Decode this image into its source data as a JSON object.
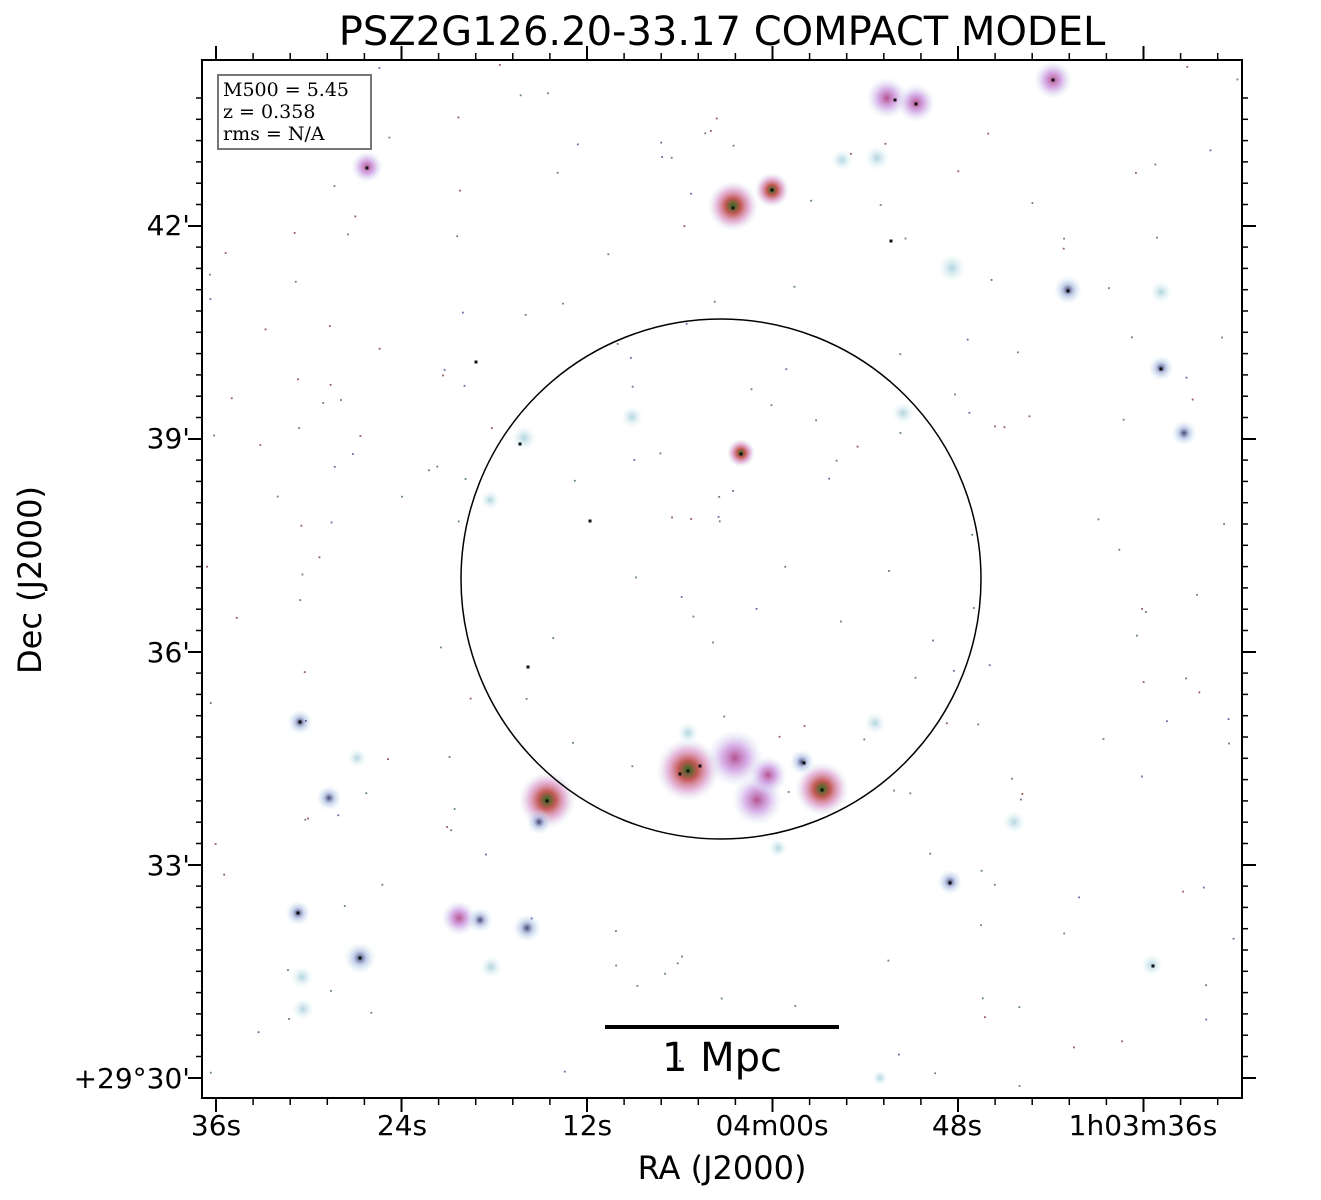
{
  "figure": {
    "title": "PSZ2G126.20-33.17 COMPACT MODEL",
    "xlabel": "RA (J2000)",
    "ylabel": "Dec (J2000)",
    "y_ticks": [
      "42'",
      "39'",
      "36'",
      "33'",
      "+29°30'"
    ],
    "x_ticks": [
      "36s",
      "24s",
      "12s",
      "04m00s",
      "48s",
      "1h03m36s"
    ],
    "info": {
      "m500": "M500 = 5.45",
      "z": "z = 0.358",
      "rms": "rms = N/A"
    },
    "scale_bar_label": "1 Mpc",
    "colors": {
      "background": "#ffffff",
      "axes": "#000000",
      "box_border": "#777777"
    }
  }
}
